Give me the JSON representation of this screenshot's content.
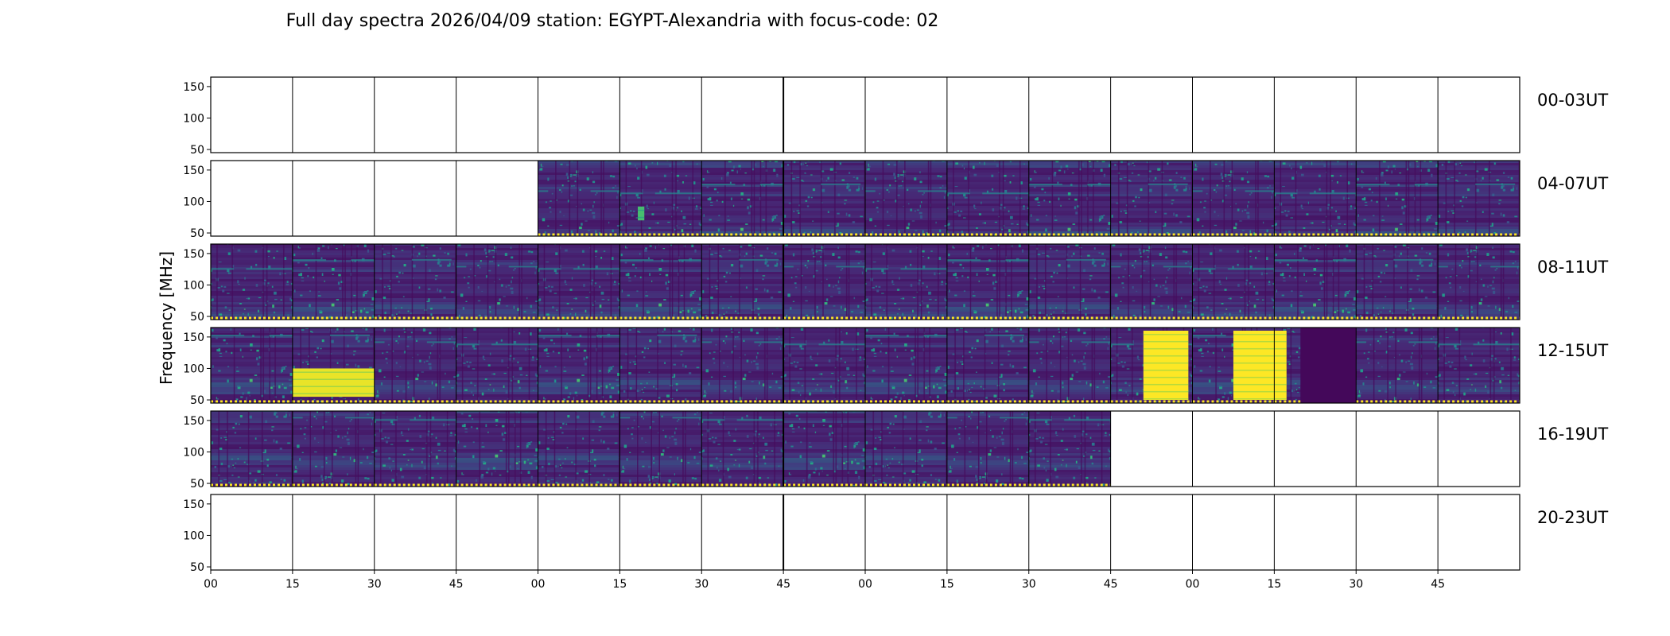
{
  "chart_data": {
    "type": "heatmap",
    "title": "Full day spectra 2026/04/09 station: EGYPT-Alexandria with focus-code: 02",
    "ylabel": "Frequency [MHz]",
    "xlabel": "",
    "ylim": [
      45,
      165
    ],
    "yticks": [
      50,
      100,
      150
    ],
    "xticks": [
      "00",
      "15",
      "30",
      "45",
      "00",
      "15",
      "30",
      "45",
      "00",
      "15",
      "30",
      "45",
      "00",
      "15",
      "30",
      "45"
    ],
    "colormap": "viridis",
    "rows": [
      {
        "label": "00-03UT",
        "panels": [
          "empty",
          "empty",
          "empty",
          "empty",
          "empty",
          "empty",
          "empty",
          "empty",
          "empty",
          "empty",
          "empty",
          "empty",
          "empty",
          "empty",
          "empty",
          "empty"
        ]
      },
      {
        "label": "04-07UT",
        "panels": [
          "empty",
          "empty",
          "empty",
          "empty",
          "data",
          "data",
          "data",
          "data",
          "data",
          "data",
          "data",
          "data",
          "data",
          "data",
          "data",
          "data"
        ]
      },
      {
        "label": "08-11UT",
        "panels": [
          "data",
          "data",
          "data",
          "data",
          "data",
          "data",
          "data",
          "data",
          "data",
          "data",
          "data",
          "data",
          "data",
          "data",
          "data",
          "data"
        ]
      },
      {
        "label": "12-15UT",
        "panels": [
          "data",
          "data",
          "data",
          "data",
          "data",
          "data",
          "data",
          "data",
          "data",
          "data",
          "data",
          "data",
          "data",
          "data",
          "data",
          "data"
        ]
      },
      {
        "label": "16-19UT",
        "panels": [
          "data",
          "data",
          "data",
          "data",
          "data",
          "data",
          "data",
          "data",
          "data",
          "data",
          "data",
          "empty",
          "empty",
          "empty",
          "empty",
          "empty"
        ]
      },
      {
        "label": "20-23UT",
        "panels": [
          "empty",
          "empty",
          "empty",
          "empty",
          "empty",
          "empty",
          "empty",
          "empty",
          "empty",
          "empty",
          "empty",
          "empty",
          "empty",
          "empty",
          "empty",
          "empty"
        ]
      }
    ],
    "bursts": [
      {
        "row": 1,
        "panel": 5,
        "t0": 0.22,
        "t1": 0.3,
        "f0": 70,
        "f1": 92,
        "level": 0.7
      },
      {
        "row": 3,
        "panel": 1,
        "t0": 0.0,
        "t1": 1.0,
        "f0": 55,
        "f1": 100,
        "level": 0.97
      },
      {
        "row": 3,
        "panel": 11,
        "t0": 0.4,
        "t1": 0.95,
        "f0": 50,
        "f1": 160,
        "level": 1.0
      },
      {
        "row": 3,
        "panel": 12,
        "t0": 0.5,
        "t1": 1.0,
        "f0": 50,
        "f1": 160,
        "level": 1.0
      },
      {
        "row": 3,
        "panel": 13,
        "t0": 0.0,
        "t1": 0.15,
        "f0": 50,
        "f1": 160,
        "level": 1.0
      }
    ],
    "quiet_segments": [
      {
        "row": 3,
        "panel": 13,
        "t0": 0.32,
        "t1": 1.0,
        "level": 0.02
      },
      {
        "row": 3,
        "panel": 14,
        "t0": 0.0,
        "t1": 0.0,
        "level": 0.05
      }
    ],
    "colors": {
      "frame": "#000000",
      "low": "#440154",
      "high": "#fde725",
      "empty_panel": "#ffffff"
    }
  }
}
